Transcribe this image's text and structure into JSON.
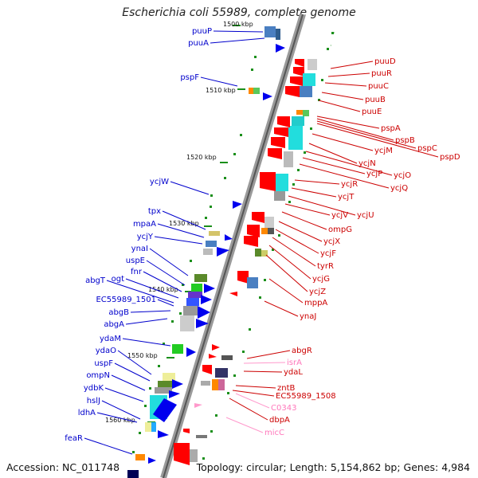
{
  "title": "Escherichia coli 55989, complete genome",
  "footer": {
    "accession": "Accession: NC_011748",
    "topology": "Topology: circular; Length: 5,154,862 bp; Genes: 4,984"
  },
  "colors": {
    "forward": "#0000cc",
    "reverse": "#cc0000",
    "rna": "#ff99cc",
    "backbone": "#777777",
    "tick": "#1a8f1a"
  },
  "scale_labels": [
    "1500 kbp",
    "1510 kbp",
    "1520 kbp",
    "1530 kbp",
    "1540 kbp",
    "1550 kbp",
    "1560 kbp"
  ],
  "forward_genes": [
    "puuP",
    "puuA",
    "pspF",
    "ycjW",
    "tpx",
    "mpaA",
    "ycjY",
    "ynaI",
    "uspE",
    "fnr",
    "ogt",
    "abgT",
    "EC55989_1501",
    "abgB",
    "abgA",
    "ydaM",
    "ydaO",
    "uspF",
    "ompN",
    "ydbK",
    "hslJ",
    "ldhA",
    "feaR"
  ],
  "reverse_genes": [
    "puuD",
    "puuR",
    "puuC",
    "puuB",
    "puuE",
    "pspA",
    "pspB",
    "pspC",
    "pspD",
    "ycjM",
    "ycjN",
    "ycjO",
    "ycjP",
    "ycjQ",
    "ycjR",
    "ycjT",
    "ycjU",
    "ycjV",
    "ompG",
    "ycjX",
    "ycjF",
    "tyrR",
    "ycjG",
    "ycjZ",
    "mppA",
    "ynaJ",
    "abgR",
    "ydaL",
    "zntB",
    "EC55989_1508",
    "dbpA"
  ],
  "rna_genes": [
    "isrA",
    "C0343",
    "micC"
  ]
}
